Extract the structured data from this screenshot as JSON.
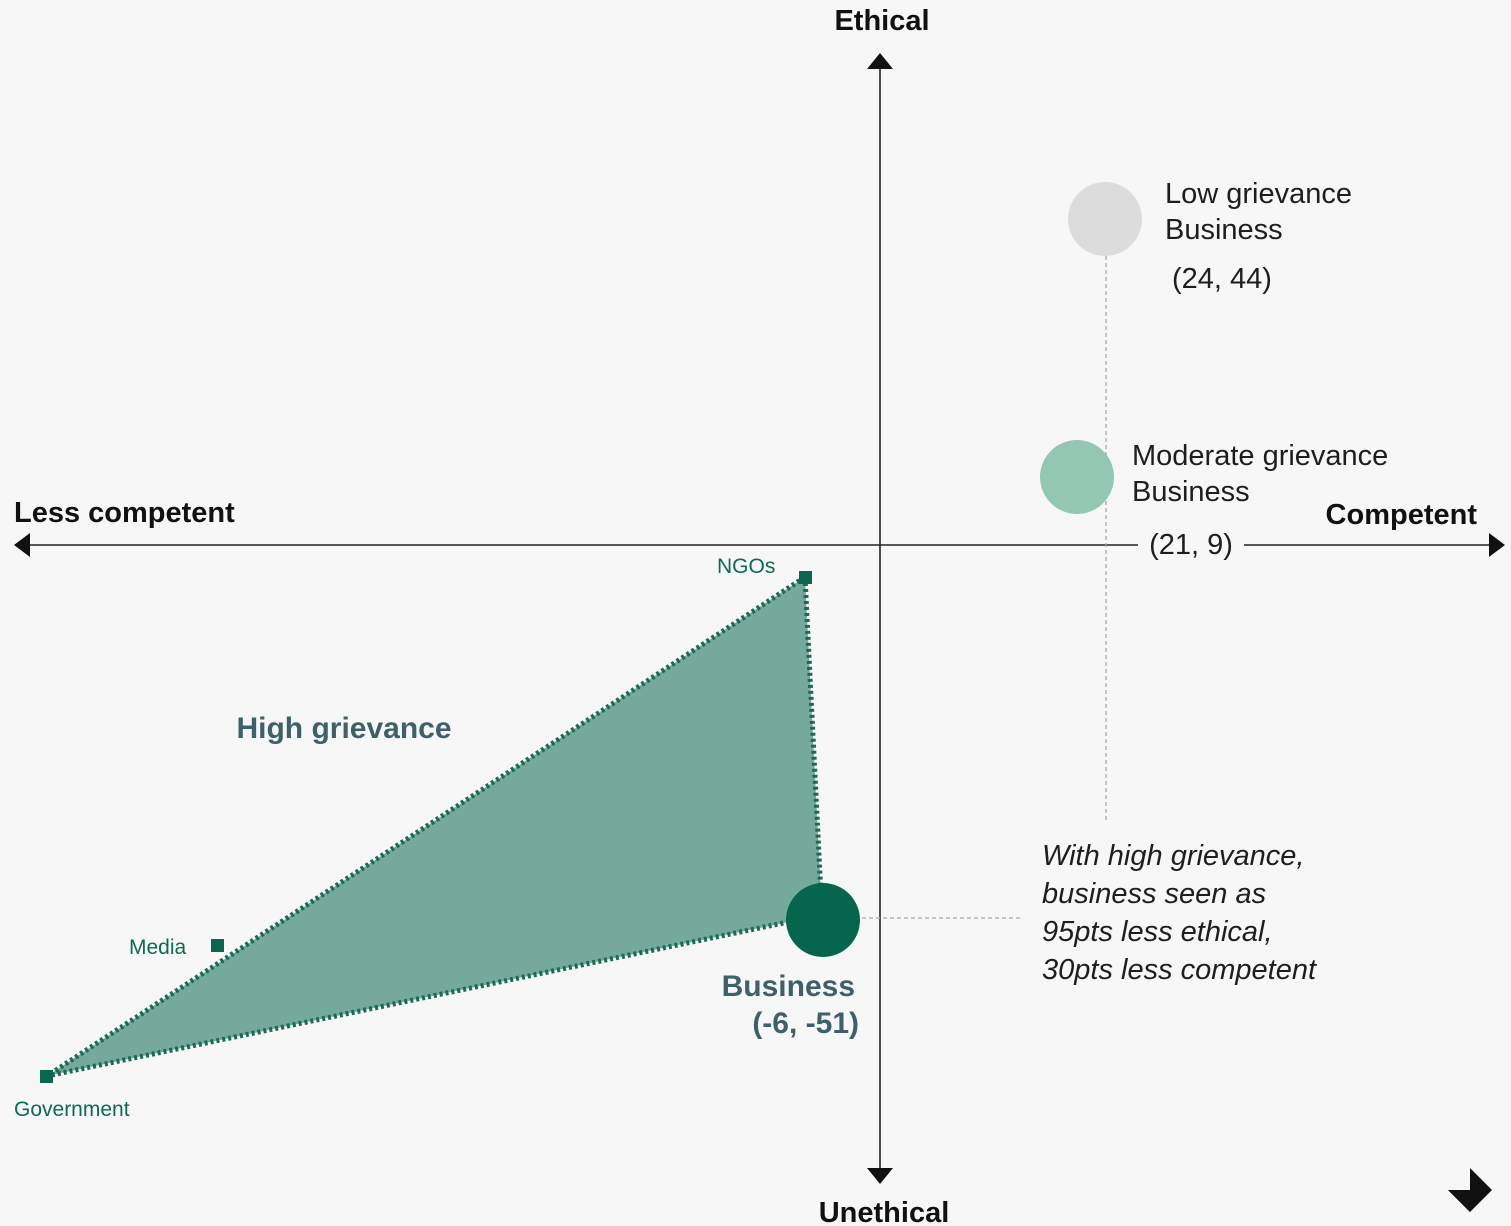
{
  "chart_data": {
    "type": "scatter",
    "axes": {
      "x_negative_label": "Less competent",
      "x_positive_label": "Competent",
      "y_positive_label": "Ethical",
      "y_negative_label": "Unethical"
    },
    "points": [
      {
        "name_lines": [
          "Low grievance",
          "Business"
        ],
        "coord_label": "(24, 44)",
        "x": 24,
        "y": 44,
        "color": "#dcdcdc"
      },
      {
        "name_lines": [
          "Moderate grievance",
          "Business"
        ],
        "coord_label": "(21, 9)",
        "x": 21,
        "y": 9,
        "color": "#94c6b4"
      },
      {
        "name_lines": [
          "Business"
        ],
        "coord_label": "(-6, -51)",
        "x": -6,
        "y": -51,
        "color": "#05654d"
      }
    ],
    "high_grievance_polygon": {
      "label": "High grievance",
      "color": "#74a99b",
      "vertices": [
        {
          "name": "NGOs",
          "x": -8,
          "y": -4
        },
        {
          "name": "Business",
          "x": -6,
          "y": -51
        },
        {
          "name": "Government",
          "x": -90,
          "y": -67
        }
      ]
    },
    "extra_markers": [
      {
        "name": "Media",
        "x": -72,
        "y": -51
      }
    ],
    "annotation_lines": [
      "With high grievance,",
      "business seen as",
      "95pts less ethical,",
      "30pts less competent"
    ]
  }
}
